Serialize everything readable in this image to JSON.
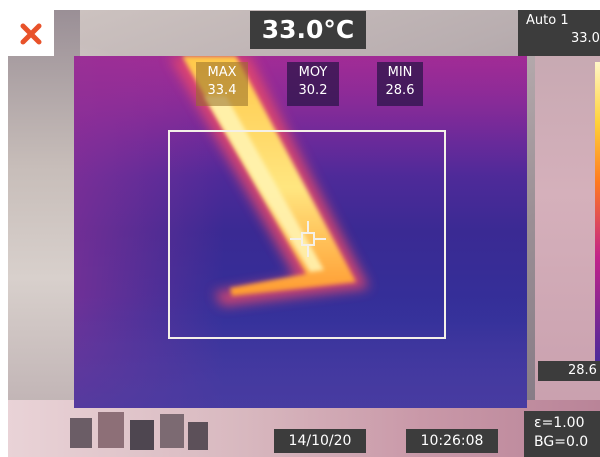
{
  "header": {
    "center_temperature": "33.0°C",
    "mode": {
      "name": "Auto 1",
      "max_value": "33.0"
    }
  },
  "stats": {
    "max": {
      "label": "MAX",
      "value": "33.4"
    },
    "avg": {
      "label": "MOY",
      "value": "30.2"
    },
    "min": {
      "label": "MIN",
      "value": "28.6"
    }
  },
  "scale": {
    "min_value": "28.6"
  },
  "footer": {
    "date": "14/10/20",
    "time": "10:26:08",
    "emissivity": "ε=1.00",
    "background": "BG=0.0"
  },
  "icons": {
    "close": "close-icon",
    "crosshair": "crosshair-icon"
  },
  "colors": {
    "close_accent": "#e8522a",
    "overlay": "#3c3c3c",
    "box_border": "#f4f0e8"
  }
}
